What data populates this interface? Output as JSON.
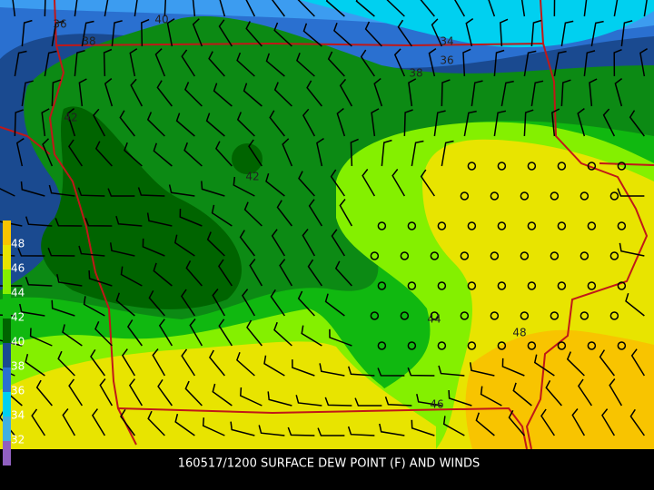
{
  "caption": "160517/1200 SURFACE DEW POINT (F) AND WINDS",
  "colorbar": {
    "labels": [
      48,
      46,
      44,
      42,
      40,
      38,
      36,
      34,
      32
    ]
  },
  "contour_labels": [
    36,
    38,
    40,
    34,
    36,
    38,
    42,
    42,
    44,
    48,
    46
  ]
}
